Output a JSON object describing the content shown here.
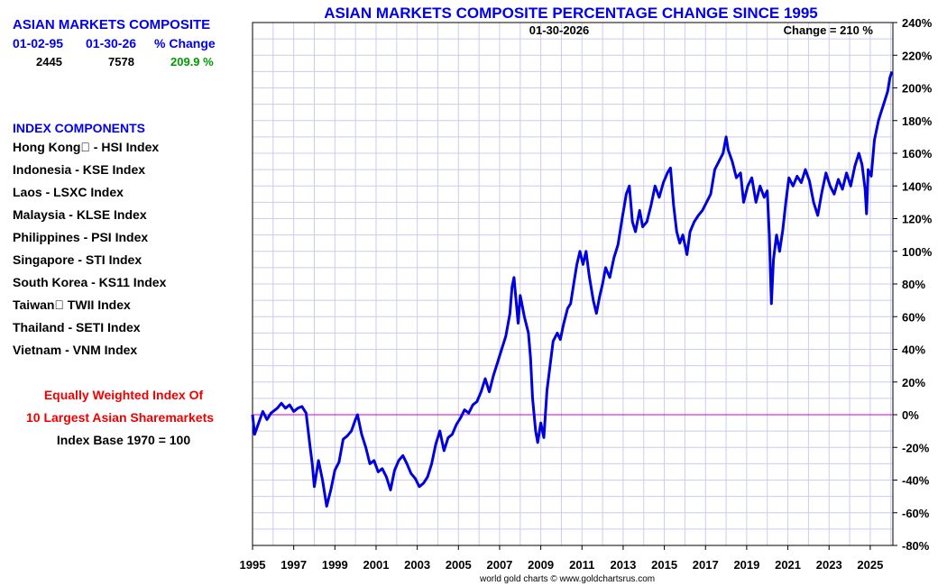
{
  "summary": {
    "title": "ASIAN MARKETS COMPOSITE",
    "col1_label": "01-02-95",
    "col2_label": "01-30-26",
    "col3_label": "% Change",
    "col1_value": "2445",
    "col2_value": "7578",
    "col3_value": "209.9 %"
  },
  "components": {
    "heading": "INDEX COMPONENTS",
    "items": [
      "Hong Kong\u0000 - HSI Index",
      "Indonesia - KSE Index",
      "Laos - LSXC Index",
      "Malaysia - KLSE Index",
      "Philippines - PSI Index",
      "Singapore - STI Index",
      "South Korea - KS11 Index",
      "Taiwan\u0000 TWII Index",
      "Thailand - SETI Index",
      "Vietnam - VNM Index"
    ]
  },
  "notes": {
    "line1": "Equally Weighted Index Of",
    "line2": "10 Largest Asian Sharemarkets",
    "line3": "Index Base 1970 = 100"
  },
  "footer": "world gold charts © www.goldchartsrus.com",
  "colors": {
    "line": "#0000dd",
    "zero": "#cc00cc",
    "grid": "#ccccee",
    "title": "#0000ee"
  },
  "chart_data": {
    "type": "line",
    "title": "ASIAN MARKETS COMPOSITE PERCENTAGE CHANGE SINCE 1995",
    "date_label": "01-30-2026",
    "change_label": "Change = 210 %",
    "xlabel": "",
    "ylabel": "",
    "xlim": [
      1995,
      2026.1
    ],
    "ylim": [
      -80,
      240
    ],
    "x_ticks": [
      "1995",
      "1997",
      "1999",
      "2001",
      "2003",
      "2005",
      "2007",
      "2009",
      "2011",
      "2013",
      "2015",
      "2017",
      "2019",
      "2021",
      "2023",
      "2025"
    ],
    "y_ticks": [
      "240%",
      "220%",
      "200%",
      "180%",
      "160%",
      "140%",
      "120%",
      "100%",
      "80%",
      "60%",
      "40%",
      "20%",
      "0%",
      "-20%",
      "-40%",
      "-60%",
      "-80%"
    ],
    "series": [
      {
        "name": "Asian Markets Composite % Change",
        "points": [
          [
            1995.0,
            0
          ],
          [
            1995.1,
            -12
          ],
          [
            1995.3,
            -5
          ],
          [
            1995.5,
            2
          ],
          [
            1995.7,
            -3
          ],
          [
            1995.9,
            1
          ],
          [
            1996.2,
            4
          ],
          [
            1996.4,
            7
          ],
          [
            1996.6,
            4
          ],
          [
            1996.8,
            6
          ],
          [
            1997.0,
            2
          ],
          [
            1997.2,
            4
          ],
          [
            1997.4,
            5
          ],
          [
            1997.6,
            1
          ],
          [
            1997.8,
            -20
          ],
          [
            1997.9,
            -30
          ],
          [
            1998.0,
            -44
          ],
          [
            1998.2,
            -28
          ],
          [
            1998.4,
            -40
          ],
          [
            1998.6,
            -56
          ],
          [
            1998.8,
            -46
          ],
          [
            1999.0,
            -34
          ],
          [
            1999.2,
            -29
          ],
          [
            1999.4,
            -15
          ],
          [
            1999.6,
            -13
          ],
          [
            1999.8,
            -10
          ],
          [
            2000.0,
            -3
          ],
          [
            2000.1,
            0
          ],
          [
            2000.3,
            -12
          ],
          [
            2000.5,
            -20
          ],
          [
            2000.7,
            -30
          ],
          [
            2000.9,
            -28
          ],
          [
            2001.1,
            -35
          ],
          [
            2001.3,
            -33
          ],
          [
            2001.5,
            -38
          ],
          [
            2001.7,
            -46
          ],
          [
            2001.9,
            -34
          ],
          [
            2002.1,
            -28
          ],
          [
            2002.3,
            -25
          ],
          [
            2002.5,
            -30
          ],
          [
            2002.7,
            -36
          ],
          [
            2002.9,
            -39
          ],
          [
            2003.1,
            -44
          ],
          [
            2003.3,
            -42
          ],
          [
            2003.5,
            -38
          ],
          [
            2003.7,
            -30
          ],
          [
            2003.9,
            -18
          ],
          [
            2004.1,
            -10
          ],
          [
            2004.3,
            -22
          ],
          [
            2004.5,
            -14
          ],
          [
            2004.7,
            -12
          ],
          [
            2004.9,
            -6
          ],
          [
            2005.1,
            -2
          ],
          [
            2005.3,
            3
          ],
          [
            2005.5,
            1
          ],
          [
            2005.7,
            6
          ],
          [
            2005.9,
            8
          ],
          [
            2006.1,
            14
          ],
          [
            2006.3,
            22
          ],
          [
            2006.5,
            14
          ],
          [
            2006.7,
            24
          ],
          [
            2006.9,
            32
          ],
          [
            2007.1,
            40
          ],
          [
            2007.3,
            48
          ],
          [
            2007.5,
            62
          ],
          [
            2007.6,
            78
          ],
          [
            2007.7,
            84
          ],
          [
            2007.8,
            70
          ],
          [
            2007.9,
            56
          ],
          [
            2008.0,
            73
          ],
          [
            2008.2,
            60
          ],
          [
            2008.4,
            50
          ],
          [
            2008.5,
            35
          ],
          [
            2008.6,
            10
          ],
          [
            2008.75,
            -10
          ],
          [
            2008.85,
            -17
          ],
          [
            2009.0,
            -5
          ],
          [
            2009.15,
            -14
          ],
          [
            2009.3,
            15
          ],
          [
            2009.45,
            30
          ],
          [
            2009.6,
            45
          ],
          [
            2009.8,
            50
          ],
          [
            2009.95,
            46
          ],
          [
            2010.1,
            55
          ],
          [
            2010.3,
            65
          ],
          [
            2010.45,
            68
          ],
          [
            2010.6,
            80
          ],
          [
            2010.75,
            92
          ],
          [
            2010.9,
            100
          ],
          [
            2011.05,
            92
          ],
          [
            2011.2,
            100
          ],
          [
            2011.35,
            85
          ],
          [
            2011.55,
            70
          ],
          [
            2011.7,
            62
          ],
          [
            2011.85,
            72
          ],
          [
            2012.0,
            80
          ],
          [
            2012.15,
            90
          ],
          [
            2012.35,
            84
          ],
          [
            2012.55,
            96
          ],
          [
            2012.75,
            104
          ],
          [
            2012.95,
            120
          ],
          [
            2013.15,
            135
          ],
          [
            2013.3,
            140
          ],
          [
            2013.45,
            118
          ],
          [
            2013.6,
            112
          ],
          [
            2013.8,
            125
          ],
          [
            2013.95,
            115
          ],
          [
            2014.15,
            118
          ],
          [
            2014.35,
            128
          ],
          [
            2014.55,
            140
          ],
          [
            2014.75,
            133
          ],
          [
            2014.95,
            142
          ],
          [
            2015.15,
            148
          ],
          [
            2015.3,
            151
          ],
          [
            2015.45,
            128
          ],
          [
            2015.6,
            112
          ],
          [
            2015.75,
            105
          ],
          [
            2015.9,
            110
          ],
          [
            2016.1,
            98
          ],
          [
            2016.25,
            112
          ],
          [
            2016.45,
            118
          ],
          [
            2016.65,
            122
          ],
          [
            2016.85,
            125
          ],
          [
            2017.05,
            130
          ],
          [
            2017.25,
            135
          ],
          [
            2017.45,
            150
          ],
          [
            2017.65,
            155
          ],
          [
            2017.85,
            160
          ],
          [
            2018.0,
            170
          ],
          [
            2018.1,
            162
          ],
          [
            2018.3,
            155
          ],
          [
            2018.5,
            145
          ],
          [
            2018.7,
            148
          ],
          [
            2018.85,
            130
          ],
          [
            2019.05,
            140
          ],
          [
            2019.25,
            145
          ],
          [
            2019.45,
            130
          ],
          [
            2019.65,
            140
          ],
          [
            2019.85,
            133
          ],
          [
            2020.0,
            137
          ],
          [
            2020.1,
            110
          ],
          [
            2020.2,
            68
          ],
          [
            2020.3,
            95
          ],
          [
            2020.45,
            110
          ],
          [
            2020.6,
            100
          ],
          [
            2020.75,
            113
          ],
          [
            2020.9,
            130
          ],
          [
            2021.05,
            145
          ],
          [
            2021.25,
            140
          ],
          [
            2021.45,
            146
          ],
          [
            2021.65,
            142
          ],
          [
            2021.85,
            150
          ],
          [
            2022.05,
            143
          ],
          [
            2022.25,
            130
          ],
          [
            2022.45,
            122
          ],
          [
            2022.65,
            136
          ],
          [
            2022.85,
            148
          ],
          [
            2023.05,
            140
          ],
          [
            2023.25,
            135
          ],
          [
            2023.45,
            144
          ],
          [
            2023.65,
            138
          ],
          [
            2023.85,
            148
          ],
          [
            2024.05,
            140
          ],
          [
            2024.25,
            152
          ],
          [
            2024.45,
            160
          ],
          [
            2024.6,
            153
          ],
          [
            2024.75,
            138
          ],
          [
            2024.82,
            123
          ],
          [
            2024.9,
            150
          ],
          [
            2025.05,
            146
          ],
          [
            2025.2,
            168
          ],
          [
            2025.4,
            180
          ],
          [
            2025.55,
            186
          ],
          [
            2025.7,
            192
          ],
          [
            2025.85,
            198
          ],
          [
            2025.95,
            206
          ],
          [
            2026.05,
            210
          ]
        ]
      }
    ],
    "reference_line": 0
  }
}
